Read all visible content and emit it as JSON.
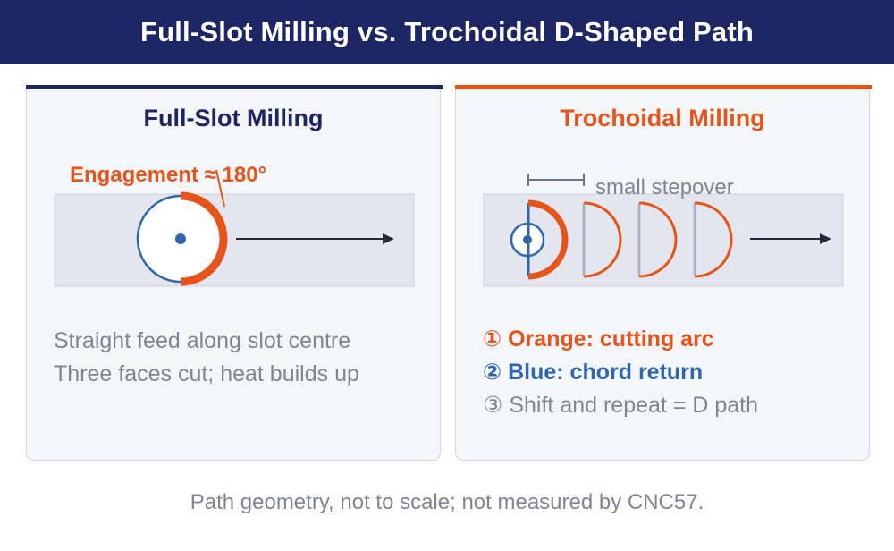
{
  "header": {
    "title": "Full-Slot Milling vs. Trochoidal D-Shaped Path"
  },
  "left_panel": {
    "title": "Full-Slot Milling",
    "engagement_label": "Engagement ≈ 180°",
    "description": [
      "Straight feed along slot centre",
      "Three faces cut; heat builds up"
    ]
  },
  "right_panel": {
    "title": "Trochoidal Milling",
    "stepover_label": "small stepover",
    "legend": [
      "① Orange: cutting arc",
      "② Blue: chord return",
      "③ Shift and repeat = D path"
    ]
  },
  "footer": {
    "note": "Path geometry, not to scale; not measured by CNC57."
  },
  "colors": {
    "navy": "#1d2663",
    "orange": "#e5541b",
    "blue": "#2e67ad",
    "gray_text": "#7f8591",
    "slot_fill": "#e3e6ee"
  },
  "icons": [
    "tool-circle-icon",
    "feed-arrow-icon",
    "d-path-arc-icon"
  ]
}
